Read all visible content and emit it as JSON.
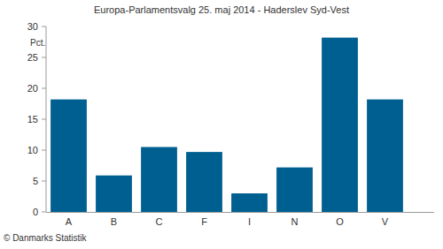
{
  "chart_data": {
    "type": "bar",
    "title": "Europa-Parlamentsvalg 25. maj 2014 - Haderslev Syd-Vest",
    "y_label": "Pct.",
    "source": "© Danmarks Statistik",
    "categories": [
      "A",
      "B",
      "C",
      "F",
      "I",
      "N",
      "O",
      "V"
    ],
    "values": [
      18.2,
      5.9,
      10.5,
      9.7,
      3.0,
      7.2,
      28.2,
      18.2
    ],
    "color": "#005f91",
    "ylim": [
      0,
      30
    ],
    "yticks": [
      0,
      5,
      10,
      15,
      20,
      25,
      30
    ],
    "grid": false
  }
}
